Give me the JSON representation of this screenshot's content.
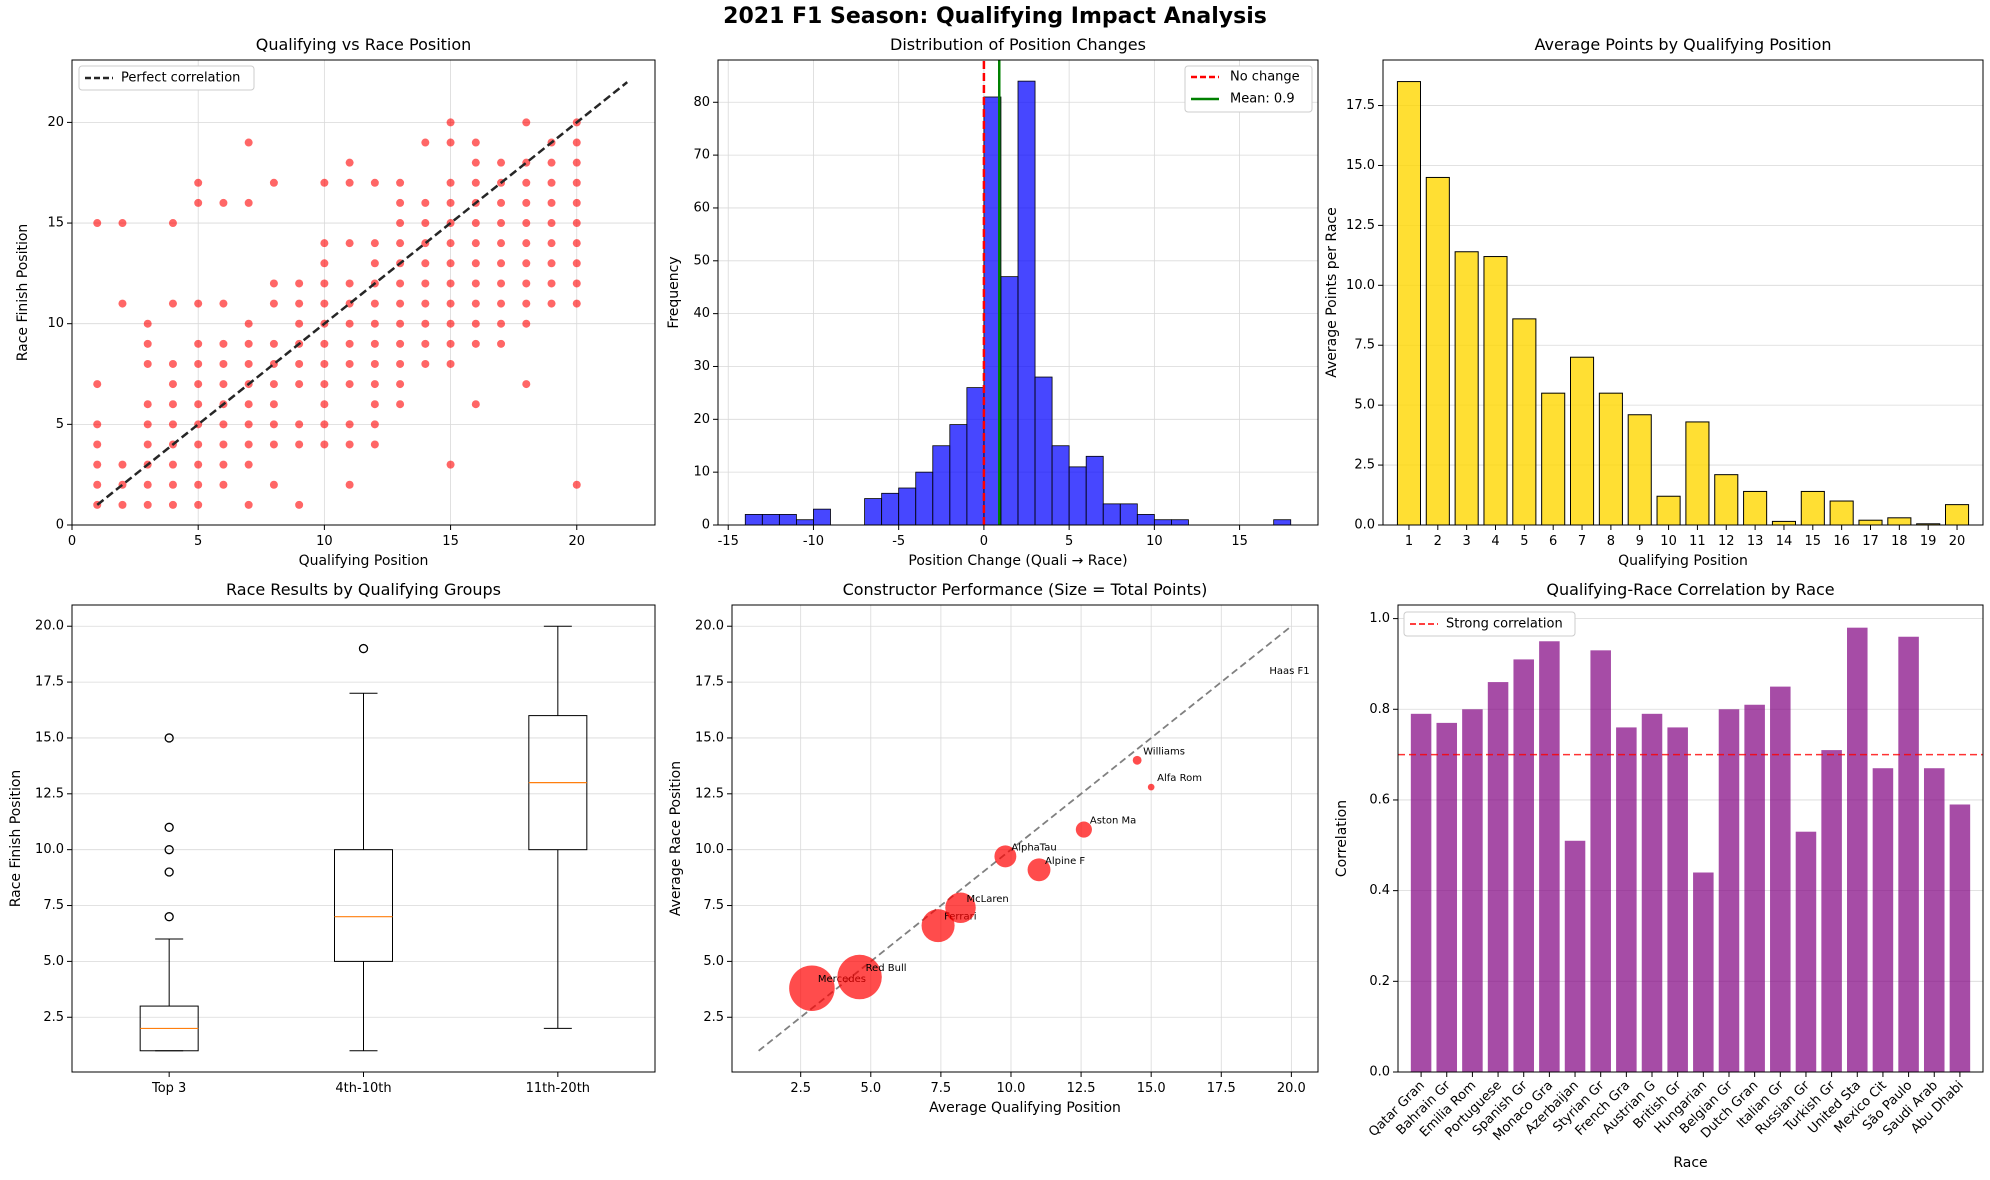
{
  "figure_title": "2021 F1 Season: Qualifying Impact Analysis",
  "colors": {
    "red": "#ff0000",
    "blue": "#0000ff",
    "green": "#008000",
    "gold": "#ffd700",
    "purple": "#800080",
    "orange": "#ff7f0e",
    "dark": "#262626",
    "gray": "#808080"
  },
  "chart_data": [
    {
      "type": "scatter",
      "title": "Qualifying vs Race Position",
      "xlabel": "Qualifying Position",
      "ylabel": "Race Finish Position",
      "xlim": [
        0,
        23.1
      ],
      "ylim": [
        0,
        23.1
      ],
      "xticks": [
        0,
        5,
        10,
        15,
        20
      ],
      "yticks": [
        0,
        5,
        10,
        15,
        20
      ],
      "legend": [
        "Perfect correlation"
      ],
      "line": [
        [
          1,
          1
        ],
        [
          22,
          22
        ]
      ],
      "points": [
        [
          1,
          1
        ],
        [
          1,
          2
        ],
        [
          1,
          3
        ],
        [
          1,
          4
        ],
        [
          1,
          5
        ],
        [
          1,
          7
        ],
        [
          1,
          15
        ],
        [
          2,
          1
        ],
        [
          2,
          2
        ],
        [
          2,
          3
        ],
        [
          2,
          11
        ],
        [
          2,
          15
        ],
        [
          3,
          1
        ],
        [
          3,
          2
        ],
        [
          3,
          3
        ],
        [
          3,
          4
        ],
        [
          3,
          5
        ],
        [
          3,
          6
        ],
        [
          3,
          8
        ],
        [
          3,
          9
        ],
        [
          3,
          10
        ],
        [
          4,
          1
        ],
        [
          4,
          2
        ],
        [
          4,
          3
        ],
        [
          4,
          4
        ],
        [
          4,
          5
        ],
        [
          4,
          6
        ],
        [
          4,
          7
        ],
        [
          4,
          8
        ],
        [
          4,
          11
        ],
        [
          4,
          15
        ],
        [
          5,
          1
        ],
        [
          5,
          2
        ],
        [
          5,
          3
        ],
        [
          5,
          4
        ],
        [
          5,
          5
        ],
        [
          5,
          6
        ],
        [
          5,
          7
        ],
        [
          5,
          8
        ],
        [
          5,
          9
        ],
        [
          5,
          11
        ],
        [
          5,
          16
        ],
        [
          5,
          17
        ],
        [
          6,
          2
        ],
        [
          6,
          3
        ],
        [
          6,
          4
        ],
        [
          6,
          5
        ],
        [
          6,
          6
        ],
        [
          6,
          7
        ],
        [
          6,
          8
        ],
        [
          6,
          9
        ],
        [
          6,
          11
        ],
        [
          6,
          16
        ],
        [
          7,
          1
        ],
        [
          7,
          3
        ],
        [
          7,
          4
        ],
        [
          7,
          5
        ],
        [
          7,
          6
        ],
        [
          7,
          7
        ],
        [
          7,
          8
        ],
        [
          7,
          9
        ],
        [
          7,
          10
        ],
        [
          7,
          16
        ],
        [
          7,
          19
        ],
        [
          8,
          2
        ],
        [
          8,
          4
        ],
        [
          8,
          5
        ],
        [
          8,
          6
        ],
        [
          8,
          7
        ],
        [
          8,
          8
        ],
        [
          8,
          9
        ],
        [
          8,
          11
        ],
        [
          8,
          12
        ],
        [
          8,
          17
        ],
        [
          9,
          1
        ],
        [
          9,
          4
        ],
        [
          9,
          5
        ],
        [
          9,
          7
        ],
        [
          9,
          8
        ],
        [
          9,
          9
        ],
        [
          9,
          10
        ],
        [
          9,
          11
        ],
        [
          9,
          12
        ],
        [
          10,
          4
        ],
        [
          10,
          5
        ],
        [
          10,
          6
        ],
        [
          10,
          7
        ],
        [
          10,
          8
        ],
        [
          10,
          9
        ],
        [
          10,
          10
        ],
        [
          10,
          11
        ],
        [
          10,
          12
        ],
        [
          10,
          13
        ],
        [
          10,
          14
        ],
        [
          10,
          17
        ],
        [
          11,
          2
        ],
        [
          11,
          4
        ],
        [
          11,
          5
        ],
        [
          11,
          7
        ],
        [
          11,
          8
        ],
        [
          11,
          9
        ],
        [
          11,
          10
        ],
        [
          11,
          11
        ],
        [
          11,
          12
        ],
        [
          11,
          14
        ],
        [
          11,
          17
        ],
        [
          11,
          18
        ],
        [
          12,
          4
        ],
        [
          12,
          5
        ],
        [
          12,
          6
        ],
        [
          12,
          7
        ],
        [
          12,
          8
        ],
        [
          12,
          9
        ],
        [
          12,
          10
        ],
        [
          12,
          11
        ],
        [
          12,
          12
        ],
        [
          12,
          13
        ],
        [
          12,
          14
        ],
        [
          12,
          17
        ],
        [
          13,
          6
        ],
        [
          13,
          7
        ],
        [
          13,
          8
        ],
        [
          13,
          9
        ],
        [
          13,
          10
        ],
        [
          13,
          11
        ],
        [
          13,
          12
        ],
        [
          13,
          13
        ],
        [
          13,
          14
        ],
        [
          13,
          15
        ],
        [
          13,
          16
        ],
        [
          13,
          17
        ],
        [
          14,
          8
        ],
        [
          14,
          9
        ],
        [
          14,
          10
        ],
        [
          14,
          11
        ],
        [
          14,
          12
        ],
        [
          14,
          13
        ],
        [
          14,
          14
        ],
        [
          14,
          15
        ],
        [
          14,
          16
        ],
        [
          14,
          19
        ],
        [
          15,
          3
        ],
        [
          15,
          8
        ],
        [
          15,
          9
        ],
        [
          15,
          10
        ],
        [
          15,
          11
        ],
        [
          15,
          12
        ],
        [
          15,
          13
        ],
        [
          15,
          14
        ],
        [
          15,
          15
        ],
        [
          15,
          16
        ],
        [
          15,
          17
        ],
        [
          15,
          19
        ],
        [
          15,
          20
        ],
        [
          16,
          6
        ],
        [
          16,
          9
        ],
        [
          16,
          10
        ],
        [
          16,
          11
        ],
        [
          16,
          12
        ],
        [
          16,
          13
        ],
        [
          16,
          14
        ],
        [
          16,
          15
        ],
        [
          16,
          16
        ],
        [
          16,
          17
        ],
        [
          16,
          18
        ],
        [
          16,
          19
        ],
        [
          17,
          9
        ],
        [
          17,
          10
        ],
        [
          17,
          11
        ],
        [
          17,
          12
        ],
        [
          17,
          13
        ],
        [
          17,
          14
        ],
        [
          17,
          15
        ],
        [
          17,
          16
        ],
        [
          17,
          17
        ],
        [
          17,
          18
        ],
        [
          18,
          7
        ],
        [
          18,
          10
        ],
        [
          18,
          11
        ],
        [
          18,
          12
        ],
        [
          18,
          13
        ],
        [
          18,
          14
        ],
        [
          18,
          15
        ],
        [
          18,
          16
        ],
        [
          18,
          17
        ],
        [
          18,
          18
        ],
        [
          18,
          20
        ],
        [
          19,
          11
        ],
        [
          19,
          12
        ],
        [
          19,
          13
        ],
        [
          19,
          14
        ],
        [
          19,
          15
        ],
        [
          19,
          16
        ],
        [
          19,
          17
        ],
        [
          19,
          18
        ],
        [
          19,
          19
        ],
        [
          20,
          2
        ],
        [
          20,
          11
        ],
        [
          20,
          12
        ],
        [
          20,
          13
        ],
        [
          20,
          14
        ],
        [
          20,
          15
        ],
        [
          20,
          16
        ],
        [
          20,
          17
        ],
        [
          20,
          18
        ],
        [
          20,
          19
        ],
        [
          20,
          20
        ]
      ]
    },
    {
      "type": "bar",
      "subtype": "histogram",
      "title": "Distribution of Position Changes",
      "xlabel": "Position Change (Quali → Race)",
      "ylabel": "Frequency",
      "xlim": [
        -15.6,
        19.6
      ],
      "ylim": [
        0,
        88
      ],
      "xticks": [
        -15,
        -10,
        -5,
        0,
        5,
        10,
        15
      ],
      "yticks": [
        0,
        10,
        20,
        30,
        40,
        50,
        60,
        70,
        80
      ],
      "bin_edges": [
        -14,
        -13,
        -12,
        -11,
        -10,
        -9,
        -8,
        -7,
        -6,
        -5,
        -4,
        -3,
        -2,
        -1,
        0,
        1,
        2,
        3,
        4,
        5,
        6,
        7,
        8,
        9,
        10,
        11,
        12,
        13,
        14,
        15,
        16,
        17,
        18
      ],
      "values": [
        2,
        2,
        2,
        1,
        3,
        0,
        0,
        5,
        6,
        7,
        10,
        15,
        19,
        26,
        81,
        47,
        84,
        28,
        15,
        11,
        13,
        4,
        4,
        2,
        1,
        1,
        0,
        0,
        0,
        0,
        0,
        1
      ],
      "legend": [
        "No change",
        "Mean: 0.9"
      ],
      "vlines": [
        0,
        0.9
      ]
    },
    {
      "type": "bar",
      "title": "Average Points by Qualifying Position",
      "xlabel": "Qualifying Position",
      "ylabel": "Average Points per Race",
      "ylim": [
        0,
        19.4
      ],
      "yticks": [
        0.0,
        2.5,
        5.0,
        7.5,
        10.0,
        12.5,
        15.0,
        17.5
      ],
      "categories": [
        "1",
        "2",
        "3",
        "4",
        "5",
        "6",
        "7",
        "8",
        "9",
        "10",
        "11",
        "12",
        "13",
        "14",
        "15",
        "16",
        "17",
        "18",
        "19",
        "20"
      ],
      "values": [
        18.5,
        14.5,
        11.4,
        11.2,
        8.6,
        5.5,
        7.0,
        5.5,
        4.6,
        1.2,
        4.3,
        2.1,
        1.4,
        0.15,
        1.4,
        1.0,
        0.2,
        0.3,
        0.05,
        0.85
      ]
    },
    {
      "type": "box",
      "title": "Race Results by Qualifying Groups",
      "xlabel": "",
      "ylabel": "Race Finish Position",
      "ylim": [
        0.05,
        20.95
      ],
      "yticks": [
        2.5,
        5.0,
        7.5,
        10.0,
        12.5,
        15.0,
        17.5,
        20.0
      ],
      "categories": [
        "Top 3",
        "4th-10th",
        "11th-20th"
      ],
      "boxes": [
        {
          "whislo": 1,
          "q1": 1,
          "med": 2,
          "q3": 3,
          "whishi": 6,
          "fliers": [
            7,
            9,
            10,
            11,
            15
          ]
        },
        {
          "whislo": 1,
          "q1": 5,
          "med": 7,
          "q3": 10,
          "whishi": 17,
          "fliers": [
            19
          ]
        },
        {
          "whislo": 2,
          "q1": 10,
          "med": 13,
          "q3": 16,
          "whishi": 20,
          "fliers": []
        }
      ]
    },
    {
      "type": "scatter",
      "subtype": "bubble",
      "title": "Constructor Performance (Size = Total Points)",
      "xlabel": "Average Qualifying Position",
      "ylabel": "Average Race Position",
      "xlim": [
        0.05,
        20.95
      ],
      "ylim": [
        0.05,
        20.95
      ],
      "xticks": [
        2.5,
        5.0,
        7.5,
        10.0,
        12.5,
        15.0,
        17.5,
        20.0
      ],
      "yticks": [
        2.5,
        5.0,
        7.5,
        10.0,
        12.5,
        15.0,
        17.5,
        20.0
      ],
      "line": [
        [
          1,
          1
        ],
        [
          20,
          20
        ]
      ],
      "points": [
        {
          "name": "Mercedes",
          "x": 2.9,
          "y": 3.8,
          "points": 613
        },
        {
          "name": "Red Bull",
          "x": 4.6,
          "y": 4.3,
          "points": 585
        },
        {
          "name": "Ferrari",
          "x": 7.4,
          "y": 6.6,
          "points": 323
        },
        {
          "name": "McLaren",
          "x": 8.2,
          "y": 7.4,
          "points": 275
        },
        {
          "name": "AlphaTau",
          "x": 9.8,
          "y": 9.7,
          "points": 142
        },
        {
          "name": "Alpine F",
          "x": 11.0,
          "y": 9.1,
          "points": 155
        },
        {
          "name": "Aston Ma",
          "x": 12.6,
          "y": 10.9,
          "points": 77
        },
        {
          "name": "Williams",
          "x": 14.5,
          "y": 14.0,
          "points": 23
        },
        {
          "name": "Alfa Rom",
          "x": 15.0,
          "y": 12.8,
          "points": 13
        },
        {
          "name": "Haas F1",
          "x": 19.0,
          "y": 17.6,
          "points": 0
        }
      ]
    },
    {
      "type": "bar",
      "title": "Qualifying-Race Correlation by Race",
      "xlabel": "Race",
      "ylabel": "Correlation",
      "ylim": [
        0,
        1.03
      ],
      "yticks": [
        0.0,
        0.2,
        0.4,
        0.6,
        0.8,
        1.0
      ],
      "legend": [
        "Strong correlation"
      ],
      "hline": 0.7,
      "categories": [
        "Qatar Gran",
        "Bahrain Gr",
        "Emilia Rom",
        "Portuguese",
        "Spanish Gr",
        "Monaco Gra",
        "Azerbaijan",
        "Styrian Gr",
        "French Gra",
        "Austrian G",
        "British Gr",
        "Hungarian",
        "Belgian Gr",
        "Dutch Gran",
        "Italian Gr",
        "Russian Gr",
        "Turkish Gr",
        "United Sta",
        "Mexico Cit",
        "São Paulo",
        "Saudi Arab",
        "Abu Dhabi"
      ],
      "values": [
        0.79,
        0.77,
        0.8,
        0.86,
        0.91,
        0.95,
        0.51,
        0.93,
        0.76,
        0.79,
        0.76,
        0.44,
        0.8,
        0.81,
        0.85,
        0.53,
        0.71,
        0.98,
        0.67,
        0.96,
        0.67,
        0.59
      ]
    }
  ]
}
